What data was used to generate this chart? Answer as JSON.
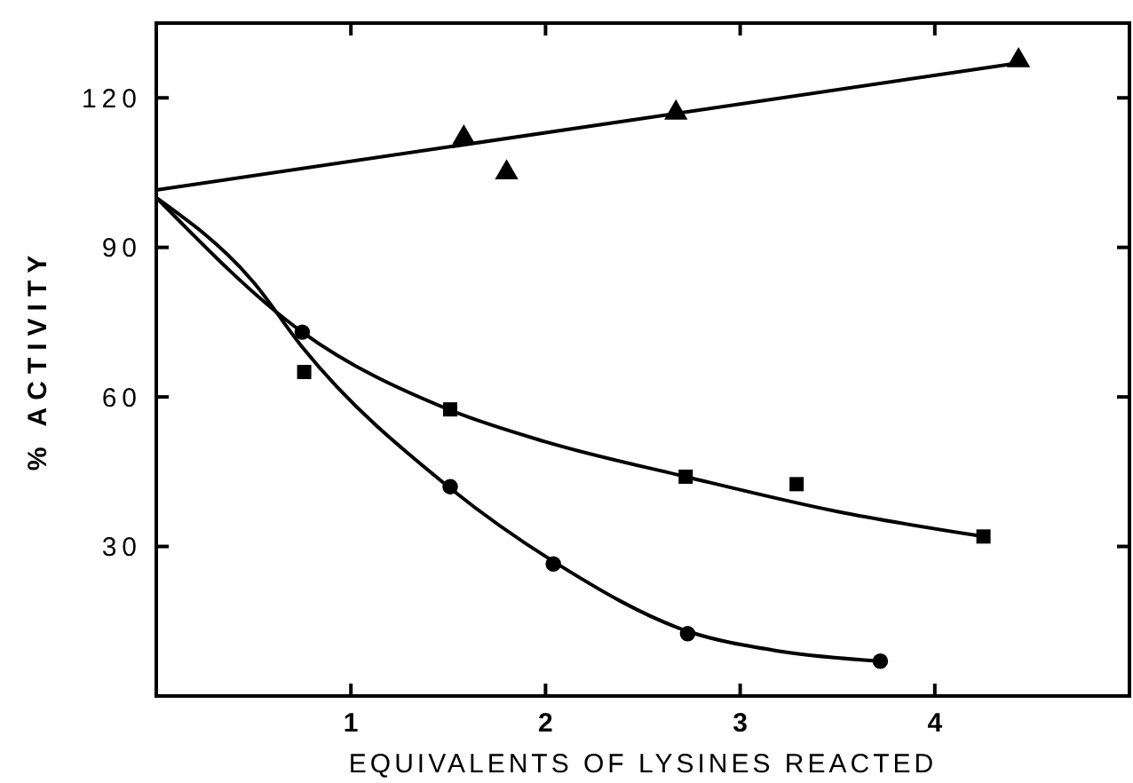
{
  "chart_data": {
    "type": "scatter",
    "xlabel": "EQUIVALENTS OF LYSINES REACTED",
    "ylabel": "% ACTIVITY",
    "xlim": [
      0,
      5
    ],
    "ylim": [
      0,
      135
    ],
    "xticks": [
      1,
      2,
      3,
      4
    ],
    "yticks": [
      30,
      60,
      90,
      120
    ],
    "grid": false,
    "series": [
      {
        "marker": "triangle",
        "color": "#000000",
        "x": [
          1.58,
          1.8,
          2.67,
          4.43
        ],
        "values": [
          112,
          105,
          117,
          127.5
        ]
      },
      {
        "marker": "circle",
        "color": "#000000",
        "x": [
          0.75,
          1.51,
          2.04,
          2.73,
          3.72
        ],
        "values": [
          73,
          42,
          26.5,
          12.5,
          7
        ]
      },
      {
        "marker": "square",
        "color": "#000000",
        "x": [
          0.76,
          1.51,
          2.72,
          3.29,
          4.25
        ],
        "values": [
          65,
          57.5,
          44,
          42.5,
          32
        ]
      },
      {
        "type": "line",
        "marker": "none",
        "line_style": "solid",
        "color": "#000000",
        "x": [
          0,
          4.43
        ],
        "values": [
          101.5,
          127
        ]
      },
      {
        "type": "line",
        "marker": "none",
        "line_style": "solid",
        "color": "#000000",
        "x": [
          0,
          0.75,
          1.5,
          2,
          2.72,
          3.5,
          4.25
        ],
        "values": [
          100,
          73,
          57.5,
          51,
          44,
          37,
          32
        ]
      },
      {
        "type": "line",
        "marker": "none",
        "line_style": "solid",
        "color": "#000000",
        "x": [
          0,
          0.5,
          0.75,
          1.5,
          2.04,
          2.73,
          3.2,
          3.72
        ],
        "values": [
          100,
          83,
          70,
          42,
          27,
          13,
          9,
          7
        ]
      }
    ]
  }
}
